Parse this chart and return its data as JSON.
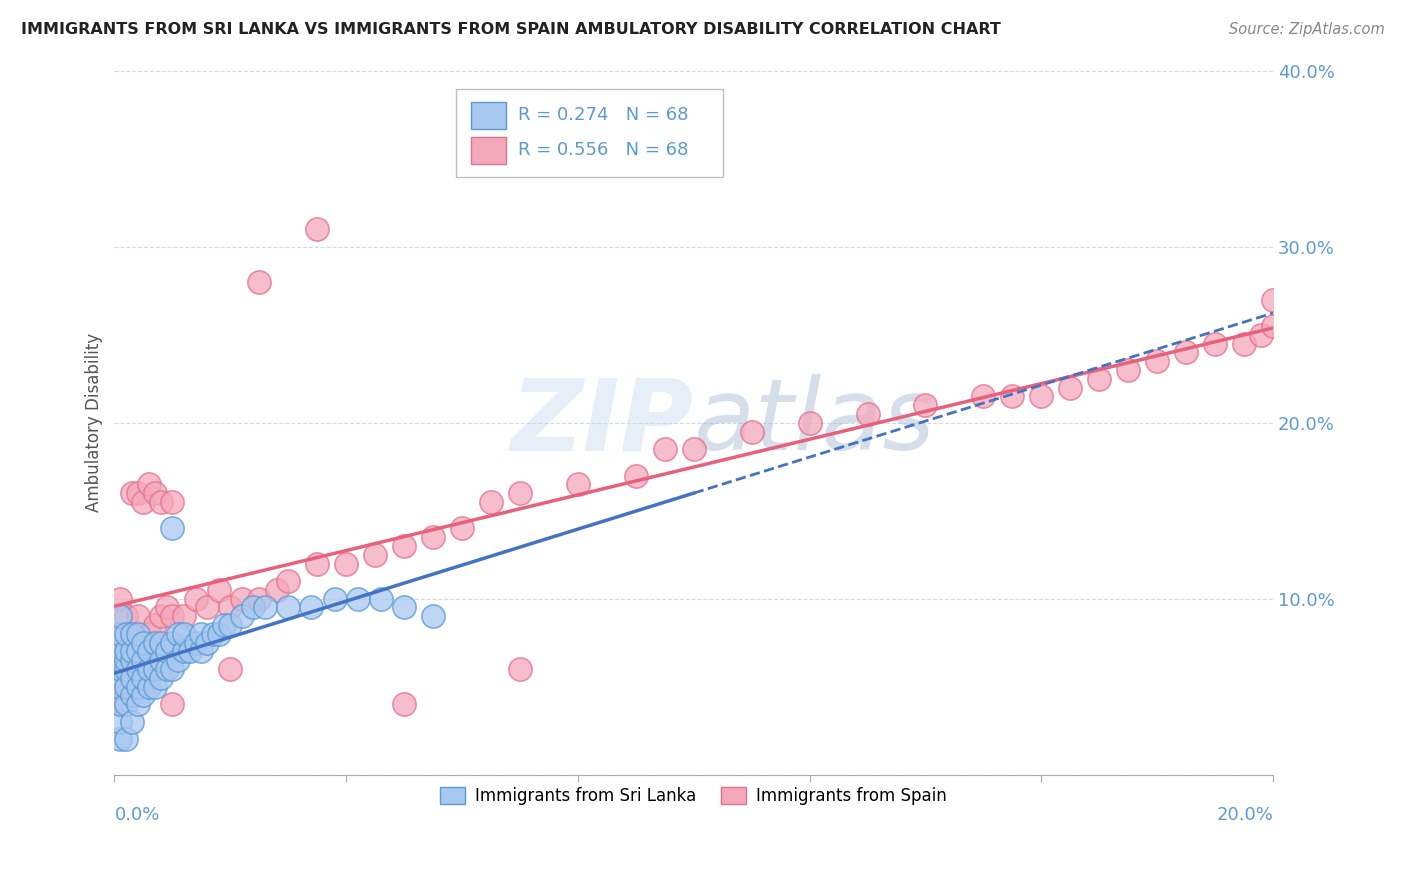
{
  "title": "IMMIGRANTS FROM SRI LANKA VS IMMIGRANTS FROM SPAIN AMBULATORY DISABILITY CORRELATION CHART",
  "source": "Source: ZipAtlas.com",
  "ylabel": "Ambulatory Disability",
  "xlim": [
    0.0,
    0.2
  ],
  "ylim": [
    0.0,
    0.4
  ],
  "color_sri_lanka_fill": "#a8c8f0",
  "color_sri_lanka_edge": "#5b9bd5",
  "color_spain_fill": "#f4a8bc",
  "color_spain_edge": "#e8708a",
  "color_sri_lanka_line": "#4472c4",
  "color_spain_line": "#e8607a",
  "color_ytick": "#5b9bd5",
  "background_color": "#ffffff",
  "grid_color": "#c8d8e8",
  "watermark_color": "#c8ddf0",
  "legend_r1": "R = 0.274",
  "legend_n1": "N = 68",
  "legend_r2": "R = 0.556",
  "legend_n2": "N = 68",
  "legend_label1": "Immigrants from Sri Lanka",
  "legend_label2": "Immigrants from Spain",
  "sri_lanka_x": [
    0.001,
    0.001,
    0.001,
    0.001,
    0.001,
    0.001,
    0.001,
    0.001,
    0.001,
    0.002,
    0.002,
    0.002,
    0.002,
    0.002,
    0.002,
    0.002,
    0.003,
    0.003,
    0.003,
    0.003,
    0.003,
    0.003,
    0.004,
    0.004,
    0.004,
    0.004,
    0.004,
    0.005,
    0.005,
    0.005,
    0.005,
    0.006,
    0.006,
    0.006,
    0.007,
    0.007,
    0.007,
    0.008,
    0.008,
    0.008,
    0.009,
    0.009,
    0.01,
    0.01,
    0.011,
    0.011,
    0.012,
    0.012,
    0.013,
    0.014,
    0.015,
    0.015,
    0.016,
    0.017,
    0.018,
    0.019,
    0.02,
    0.022,
    0.024,
    0.026,
    0.03,
    0.034,
    0.038,
    0.042,
    0.046,
    0.05,
    0.055,
    0.01
  ],
  "sri_lanka_y": [
    0.02,
    0.03,
    0.04,
    0.05,
    0.06,
    0.065,
    0.07,
    0.08,
    0.09,
    0.02,
    0.04,
    0.05,
    0.06,
    0.065,
    0.07,
    0.08,
    0.03,
    0.045,
    0.055,
    0.065,
    0.07,
    0.08,
    0.04,
    0.05,
    0.06,
    0.07,
    0.08,
    0.045,
    0.055,
    0.065,
    0.075,
    0.05,
    0.06,
    0.07,
    0.05,
    0.06,
    0.075,
    0.055,
    0.065,
    0.075,
    0.06,
    0.07,
    0.06,
    0.075,
    0.065,
    0.08,
    0.07,
    0.08,
    0.07,
    0.075,
    0.07,
    0.08,
    0.075,
    0.08,
    0.08,
    0.085,
    0.085,
    0.09,
    0.095,
    0.095,
    0.095,
    0.095,
    0.1,
    0.1,
    0.1,
    0.095,
    0.09,
    0.14
  ],
  "spain_x": [
    0.001,
    0.001,
    0.001,
    0.001,
    0.002,
    0.002,
    0.002,
    0.003,
    0.003,
    0.003,
    0.004,
    0.004,
    0.004,
    0.005,
    0.005,
    0.006,
    0.006,
    0.007,
    0.007,
    0.008,
    0.008,
    0.009,
    0.01,
    0.01,
    0.012,
    0.014,
    0.016,
    0.018,
    0.02,
    0.022,
    0.025,
    0.028,
    0.03,
    0.035,
    0.04,
    0.045,
    0.05,
    0.055,
    0.06,
    0.065,
    0.07,
    0.08,
    0.09,
    0.095,
    0.1,
    0.11,
    0.12,
    0.13,
    0.14,
    0.15,
    0.155,
    0.16,
    0.165,
    0.17,
    0.175,
    0.18,
    0.185,
    0.19,
    0.195,
    0.198,
    0.2,
    0.2,
    0.01,
    0.02,
    0.025,
    0.035,
    0.05,
    0.07
  ],
  "spain_y": [
    0.04,
    0.06,
    0.08,
    0.1,
    0.05,
    0.07,
    0.09,
    0.06,
    0.08,
    0.16,
    0.07,
    0.09,
    0.16,
    0.075,
    0.155,
    0.08,
    0.165,
    0.085,
    0.16,
    0.09,
    0.155,
    0.095,
    0.09,
    0.155,
    0.09,
    0.1,
    0.095,
    0.105,
    0.095,
    0.1,
    0.1,
    0.105,
    0.11,
    0.12,
    0.12,
    0.125,
    0.13,
    0.135,
    0.14,
    0.155,
    0.16,
    0.165,
    0.17,
    0.185,
    0.185,
    0.195,
    0.2,
    0.205,
    0.21,
    0.215,
    0.215,
    0.215,
    0.22,
    0.225,
    0.23,
    0.235,
    0.24,
    0.245,
    0.245,
    0.25,
    0.255,
    0.27,
    0.04,
    0.06,
    0.28,
    0.31,
    0.04,
    0.06
  ]
}
